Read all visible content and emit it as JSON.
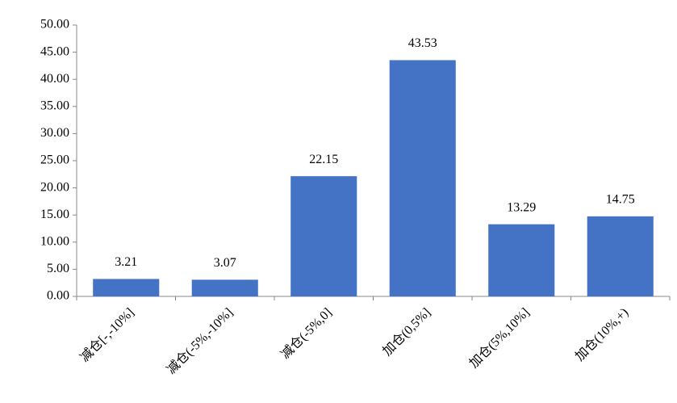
{
  "chart_data": {
    "type": "bar",
    "categories": [
      "减仓[-,-10%]",
      "减仓(-5%,-10%]",
      "减仓(-5%,0]",
      "加仓(0,5%]",
      "加仓(5%,10%]",
      "加仓(10%,+)"
    ],
    "values": [
      3.21,
      3.07,
      22.15,
      43.53,
      13.29,
      14.75
    ],
    "color": "#4472c4",
    "ylim": [
      0,
      50
    ],
    "yticks": [
      {
        "value": 0,
        "label": "0.00"
      },
      {
        "value": 5,
        "label": "5.00"
      },
      {
        "value": 10,
        "label": "10.00"
      },
      {
        "value": 15,
        "label": "15.00"
      },
      {
        "value": 20,
        "label": "20.00"
      },
      {
        "value": 25,
        "label": "25.00"
      },
      {
        "value": 30,
        "label": "30.00"
      },
      {
        "value": 35,
        "label": "35.00"
      },
      {
        "value": 40,
        "label": "40.00"
      },
      {
        "value": 45,
        "label": "45.00"
      },
      {
        "value": 50,
        "label": "50.00"
      }
    ],
    "grid": false
  }
}
